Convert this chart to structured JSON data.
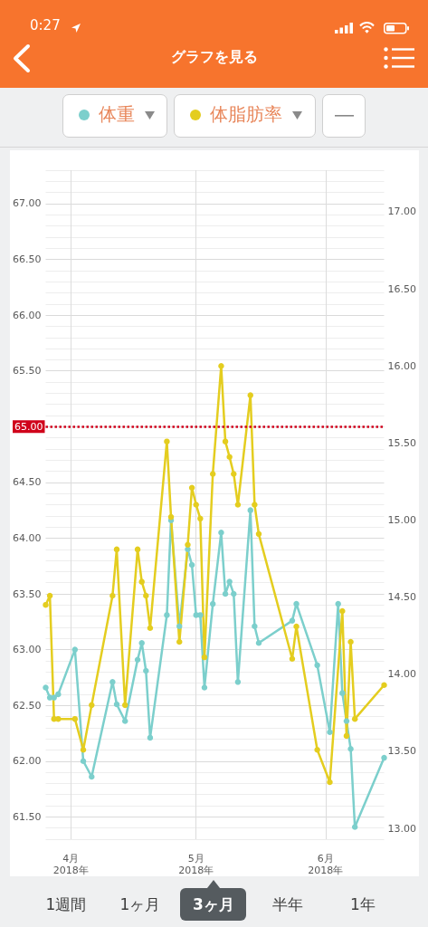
{
  "chart_data": {
    "type": "line",
    "title": "グラフを見る",
    "series": [
      {
        "name": "体重",
        "color": "#7ccfcc",
        "x": [
          "2018-03-26",
          "2018-03-27",
          "2018-03-28",
          "2018-03-29",
          "2018-04-02",
          "2018-04-04",
          "2018-04-06",
          "2018-04-11",
          "2018-04-12",
          "2018-04-14",
          "2018-04-17",
          "2018-04-18",
          "2018-04-19",
          "2018-04-20",
          "2018-04-24",
          "2018-04-25",
          "2018-04-27",
          "2018-04-29",
          "2018-04-30",
          "2018-05-01",
          "2018-05-02",
          "2018-05-03",
          "2018-05-05",
          "2018-05-07",
          "2018-05-08",
          "2018-05-09",
          "2018-05-10",
          "2018-05-11",
          "2018-05-14",
          "2018-05-15",
          "2018-05-16",
          "2018-05-24",
          "2018-05-25",
          "2018-05-30",
          "2018-06-02",
          "2018-06-04",
          "2018-06-05",
          "2018-06-06",
          "2018-06-07",
          "2018-06-08",
          "2018-06-15"
        ],
        "values": [
          62.66,
          62.57,
          62.57,
          62.6,
          63.0,
          62.0,
          61.86,
          62.71,
          62.51,
          62.36,
          62.91,
          63.06,
          62.81,
          62.21,
          63.31,
          64.16,
          63.21,
          63.9,
          63.76,
          63.31,
          63.31,
          62.66,
          63.41,
          64.05,
          63.5,
          63.61,
          63.5,
          62.71,
          64.25,
          63.21,
          63.06,
          63.26,
          63.41,
          62.86,
          62.26,
          63.41,
          62.61,
          62.36,
          62.11,
          61.41,
          62.03
        ]
      },
      {
        "name": "体脂肪率",
        "color": "#e4cd1f",
        "axis": "y2",
        "x": [
          "2018-03-26",
          "2018-03-27",
          "2018-03-28",
          "2018-03-29",
          "2018-04-02",
          "2018-04-04",
          "2018-04-06",
          "2018-04-11",
          "2018-04-12",
          "2018-04-14",
          "2018-04-17",
          "2018-04-18",
          "2018-04-19",
          "2018-04-20",
          "2018-04-24",
          "2018-04-25",
          "2018-04-27",
          "2018-04-29",
          "2018-04-30",
          "2018-05-01",
          "2018-05-02",
          "2018-05-03",
          "2018-05-05",
          "2018-05-07",
          "2018-05-08",
          "2018-05-09",
          "2018-05-10",
          "2018-05-11",
          "2018-05-14",
          "2018-05-15",
          "2018-05-16",
          "2018-05-24",
          "2018-05-25",
          "2018-05-30",
          "2018-06-02",
          "2018-06-05",
          "2018-06-06",
          "2018-06-07",
          "2018-06-08",
          "2018-06-15"
        ],
        "values": [
          14.45,
          14.51,
          13.71,
          13.71,
          13.71,
          13.51,
          13.8,
          14.51,
          14.81,
          13.8,
          14.81,
          14.6,
          14.51,
          14.3,
          15.51,
          15.02,
          14.21,
          14.84,
          15.21,
          15.1,
          15.01,
          14.11,
          15.3,
          16.0,
          15.51,
          15.41,
          15.3,
          15.1,
          15.81,
          15.1,
          14.91,
          14.1,
          14.31,
          13.51,
          13.3,
          14.41,
          13.6,
          14.21,
          13.71,
          13.93
        ]
      }
    ],
    "xlim": [
      "2018-03-26",
      "2018-06-15"
    ],
    "xticks": [
      {
        "value": "2018-04-01",
        "label": "4月\n2018年"
      },
      {
        "value": "2018-05-01",
        "label": "5月\n2018年"
      },
      {
        "value": "2018-06-01",
        "label": "6月\n2018年"
      }
    ],
    "ylim": [
      61.3,
      67.3
    ],
    "yticks": [
      {
        "value": 61.5,
        "label": "61.50"
      },
      {
        "value": 62,
        "label": "62.00"
      },
      {
        "value": 62.5,
        "label": "62.50"
      },
      {
        "value": 63,
        "label": "63.00"
      },
      {
        "value": 63.5,
        "label": "63.50"
      },
      {
        "value": 64,
        "label": "64.00"
      },
      {
        "value": 64.5,
        "label": "64.50"
      },
      {
        "value": 65,
        "label": null
      },
      {
        "value": 65.5,
        "label": "65.50"
      },
      {
        "value": 66,
        "label": "66.00"
      },
      {
        "value": 66.5,
        "label": "66.50"
      },
      {
        "value": 67,
        "label": "67.00"
      }
    ],
    "y2lim": [
      12.93,
      17.27
    ],
    "y2ticks": [
      {
        "value": 13,
        "label": "13.00"
      },
      {
        "value": 13.5,
        "label": "13.50"
      },
      {
        "value": 14,
        "label": "14.00"
      },
      {
        "value": 14.5,
        "label": "14.50"
      },
      {
        "value": 15,
        "label": "15.00"
      },
      {
        "value": 15.5,
        "label": "15.50"
      },
      {
        "value": 16,
        "label": "16.00"
      },
      {
        "value": 16.5,
        "label": "16.50"
      },
      {
        "value": 17,
        "label": "17.00"
      }
    ],
    "ref_lines": [
      {
        "axis": "y",
        "value": 65,
        "label": "65.00",
        "color": "#d0021b",
        "line_style": "dotted"
      }
    ],
    "grid": true,
    "legend": "top",
    "marker": "circle",
    "annotations": [
      "0:27",
      "1週間",
      "1ヶ月",
      "3ヶ月",
      "半年",
      "1年"
    ]
  }
}
